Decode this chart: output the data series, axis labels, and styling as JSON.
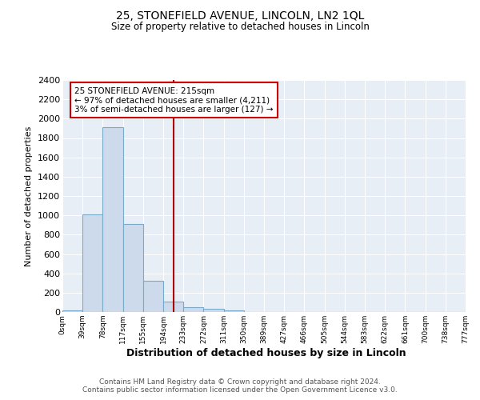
{
  "title1": "25, STONEFIELD AVENUE, LINCOLN, LN2 1QL",
  "title2": "Size of property relative to detached houses in Lincoln",
  "xlabel": "Distribution of detached houses by size in Lincoln",
  "ylabel": "Number of detached properties",
  "bar_color": "#cddaeb",
  "bar_edge_color": "#7aaaca",
  "background_color": "#e8eef6",
  "grid_color": "#ffffff",
  "vline_color": "#aa0000",
  "vline_x": 5.5,
  "bin_labels": [
    "0sqm",
    "39sqm",
    "78sqm",
    "117sqm",
    "155sqm",
    "194sqm",
    "233sqm",
    "272sqm",
    "311sqm",
    "350sqm",
    "389sqm",
    "427sqm",
    "466sqm",
    "505sqm",
    "544sqm",
    "583sqm",
    "622sqm",
    "661sqm",
    "700sqm",
    "738sqm",
    "777sqm"
  ],
  "bar_heights": [
    20,
    1010,
    1910,
    910,
    320,
    110,
    50,
    30,
    20,
    0,
    0,
    0,
    0,
    0,
    0,
    0,
    0,
    0,
    0,
    0
  ],
  "ylim": [
    0,
    2400
  ],
  "yticks": [
    0,
    200,
    400,
    600,
    800,
    1000,
    1200,
    1400,
    1600,
    1800,
    2000,
    2200,
    2400
  ],
  "annotation_text": "25 STONEFIELD AVENUE: 215sqm\n← 97% of detached houses are smaller (4,211)\n3% of semi-detached houses are larger (127) →",
  "annotation_box_color": "#ffffff",
  "annotation_box_edge": "#cc0000",
  "footer1": "Contains HM Land Registry data © Crown copyright and database right 2024.",
  "footer2": "Contains public sector information licensed under the Open Government Licence v3.0."
}
